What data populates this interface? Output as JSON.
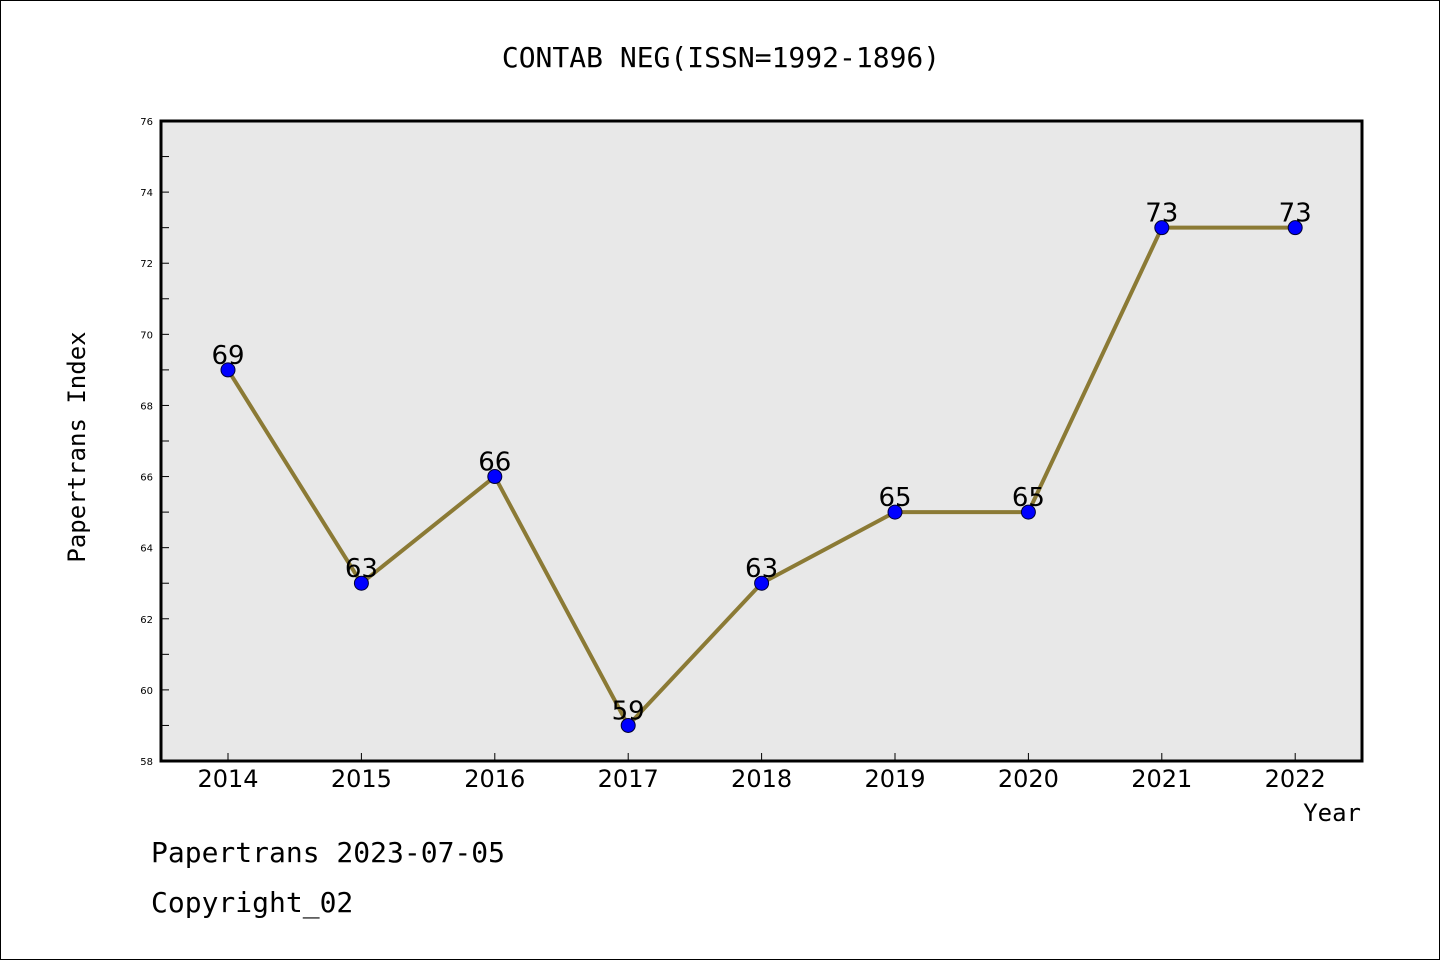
{
  "footer": {
    "date_line": "Papertrans 2023-07-05",
    "copyright_line": "Copyright_02"
  },
  "colors": {
    "plot_background": "#e8e8e8",
    "line": "#8b7a35",
    "marker": "#0000ff",
    "axis": "#000000"
  },
  "chart_data": {
    "type": "line",
    "title": "CONTAB NEG(ISSN=1992-1896)",
    "xlabel": "Year",
    "ylabel": "Papertrans Index",
    "categories": [
      "2014",
      "2015",
      "2016",
      "2017",
      "2018",
      "2019",
      "2020",
      "2021",
      "2022"
    ],
    "values": [
      69,
      63,
      66,
      59,
      63,
      65,
      65,
      73,
      73
    ],
    "ylim": [
      58,
      76
    ],
    "yticks": [
      58,
      60,
      62,
      64,
      66,
      68,
      70,
      72,
      74,
      76
    ],
    "grid": false,
    "data_labels": true
  }
}
